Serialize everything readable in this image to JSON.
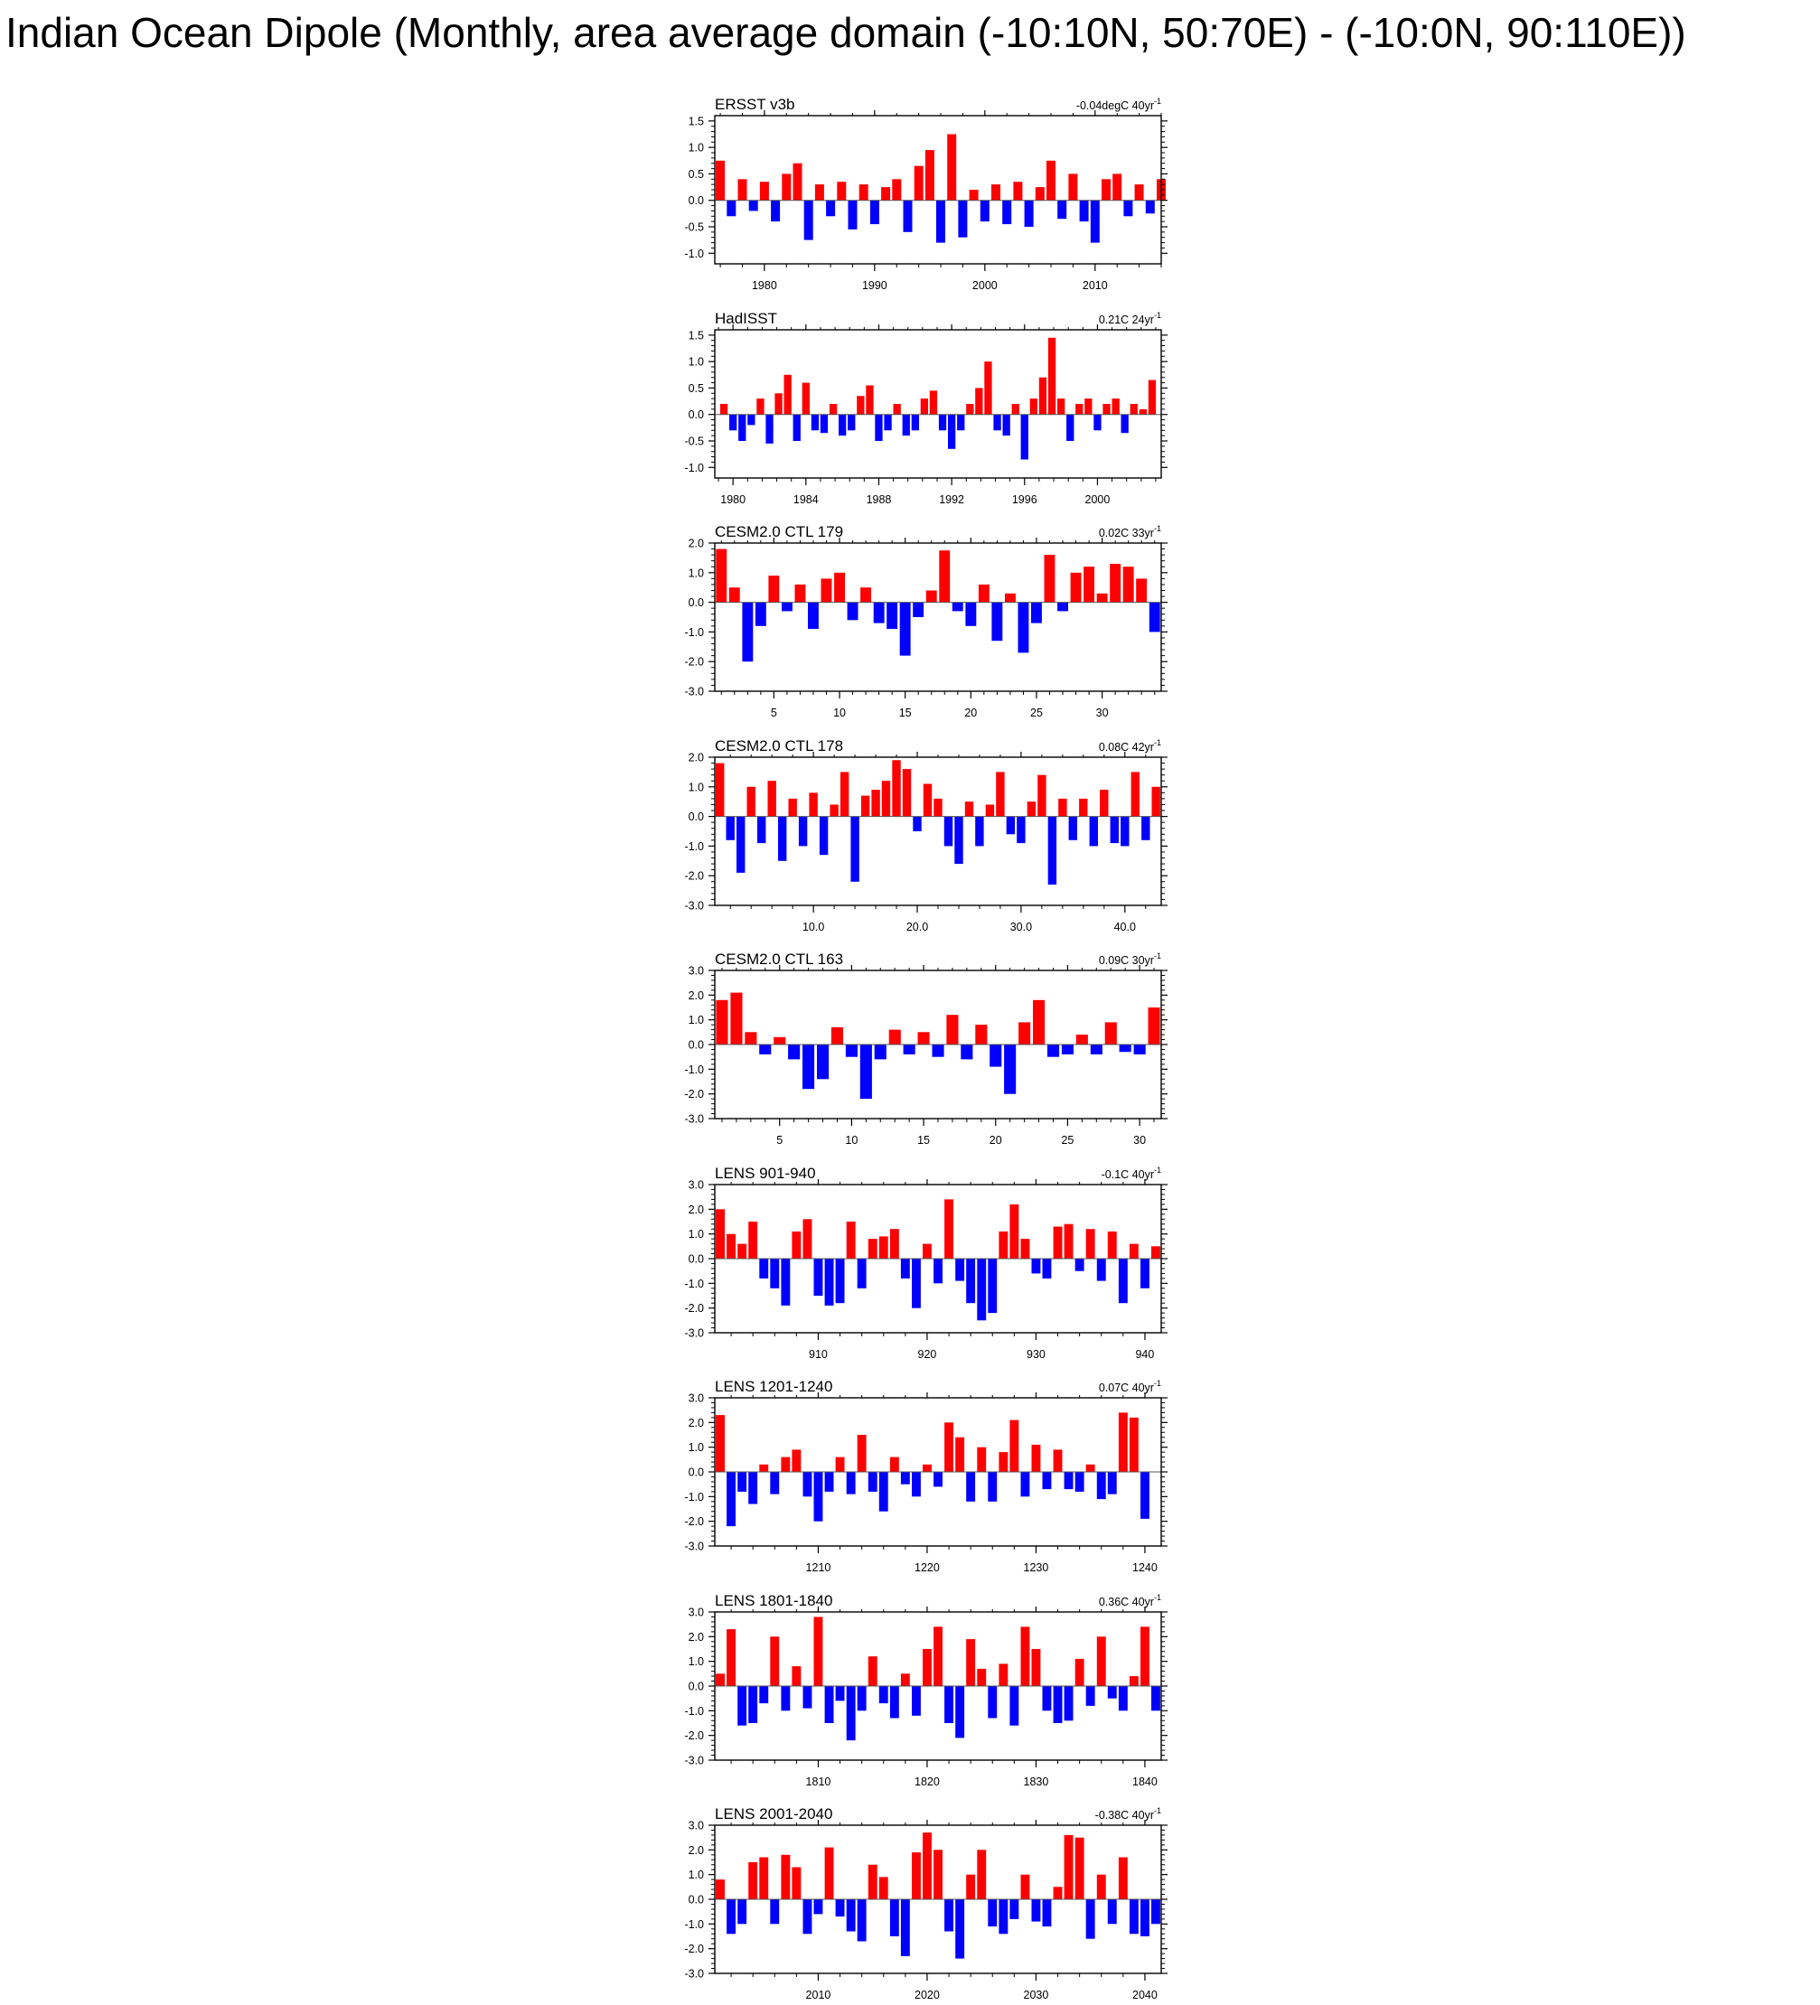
{
  "title": "Indian Ocean Dipole (Monthly, area average domain (-10:10N, 50:70E) - (-10:0N, 90:110E))",
  "colors": {
    "positive": "#ff0000",
    "negative": "#0000ff",
    "axis": "#000000"
  },
  "chart_data": [
    {
      "type": "area",
      "title": "ERSST v3b",
      "annotation": "-0.04degC 40yr",
      "annotation_sup": "-1",
      "xlim": [
        1975.5,
        2016.0
      ],
      "x_ticks": [
        1980,
        1990,
        2000,
        2010
      ],
      "x_tick_labels": [
        "1980",
        "1990",
        "2000",
        "2010"
      ],
      "ylim": [
        -1.2,
        1.6
      ],
      "y_ticks": [
        -1.0,
        -0.5,
        0.0,
        0.5,
        1.0,
        1.5
      ],
      "y_tick_labels": [
        "-1.0",
        "-0.5",
        "0.0",
        "0.5",
        "1.0",
        "1.5"
      ],
      "series": [
        {
          "x": [
            1976,
            1977,
            1978,
            1979,
            1980,
            1981,
            1982,
            1983,
            1984,
            1985,
            1986,
            1987,
            1988,
            1989,
            1990,
            1991,
            1992,
            1993,
            1994,
            1995,
            1996,
            1997,
            1998,
            1999,
            2000,
            2001,
            2002,
            2003,
            2004,
            2005,
            2006,
            2007,
            2008,
            2009,
            2010,
            2011,
            2012,
            2013,
            2014,
            2015,
            2016
          ],
          "values": [
            0.75,
            -0.3,
            0.4,
            -0.2,
            0.35,
            -0.4,
            0.5,
            0.7,
            -0.75,
            0.3,
            -0.3,
            0.35,
            -0.55,
            0.3,
            -0.45,
            0.25,
            0.4,
            -0.6,
            0.65,
            0.95,
            -0.8,
            1.25,
            -0.7,
            0.2,
            -0.4,
            0.3,
            -0.45,
            0.35,
            -0.5,
            0.25,
            0.75,
            -0.35,
            0.5,
            -0.4,
            -0.8,
            0.4,
            0.5,
            -0.3,
            0.3,
            -0.25,
            0.4
          ]
        }
      ]
    },
    {
      "type": "area",
      "title": "HadISST",
      "annotation": "0.21C 24yr",
      "annotation_sup": "-1",
      "xlim": [
        1979.0,
        2003.5
      ],
      "x_ticks": [
        1980,
        1984,
        1988,
        1992,
        1996,
        2000
      ],
      "x_tick_labels": [
        "1980",
        "1984",
        "1988",
        "1992",
        "1996",
        "2000"
      ],
      "ylim": [
        -1.2,
        1.6
      ],
      "y_ticks": [
        -1.0,
        -0.5,
        0.0,
        0.5,
        1.0,
        1.5
      ],
      "y_tick_labels": [
        "-1.0",
        "-0.5",
        "0.0",
        "0.5",
        "1.0",
        "1.5"
      ],
      "series": [
        {
          "x": [
            1979.5,
            1980,
            1980.5,
            1981,
            1981.5,
            1982,
            1982.5,
            1983,
            1983.5,
            1984,
            1984.5,
            1985,
            1985.5,
            1986,
            1986.5,
            1987,
            1987.5,
            1988,
            1988.5,
            1989,
            1989.5,
            1990,
            1990.5,
            1991,
            1991.5,
            1992,
            1992.5,
            1993,
            1993.5,
            1994,
            1994.5,
            1995,
            1995.5,
            1996,
            1996.5,
            1997,
            1997.5,
            1998,
            1998.5,
            1999,
            1999.5,
            2000,
            2000.5,
            2001,
            2001.5,
            2002,
            2002.5,
            2003
          ],
          "values": [
            0.2,
            -0.3,
            -0.5,
            -0.2,
            0.3,
            -0.55,
            0.4,
            0.75,
            -0.5,
            0.6,
            -0.3,
            -0.35,
            0.2,
            -0.4,
            -0.3,
            0.35,
            0.55,
            -0.5,
            -0.3,
            0.2,
            -0.4,
            -0.3,
            0.3,
            0.45,
            -0.3,
            -0.65,
            -0.3,
            0.2,
            0.5,
            1.0,
            -0.3,
            -0.4,
            0.2,
            -0.85,
            0.3,
            0.7,
            1.45,
            0.3,
            -0.5,
            0.2,
            0.3,
            -0.3,
            0.2,
            0.3,
            -0.35,
            0.2,
            0.1,
            0.65
          ]
        }
      ]
    },
    {
      "type": "area",
      "title": "CESM2.0 CTL 179",
      "annotation": "0.02C 33yr",
      "annotation_sup": "-1",
      "xlim": [
        0.5,
        34.5
      ],
      "x_ticks": [
        5,
        10,
        15,
        20,
        25,
        30
      ],
      "x_tick_labels": [
        "5",
        "10",
        "15",
        "20",
        "25",
        "30"
      ],
      "ylim": [
        -3.0,
        2.0
      ],
      "y_ticks": [
        -3.0,
        -2.0,
        -1.0,
        0.0,
        1.0,
        2.0
      ],
      "y_tick_labels": [
        "-3.0",
        "-2.0",
        "-1.0",
        "0.0",
        "1.0",
        "2.0"
      ],
      "series": [
        {
          "x": [
            1,
            2,
            3,
            4,
            5,
            6,
            7,
            8,
            9,
            10,
            11,
            12,
            13,
            14,
            15,
            16,
            17,
            18,
            19,
            20,
            21,
            22,
            23,
            24,
            25,
            26,
            27,
            28,
            29,
            30,
            31,
            32,
            33,
            34
          ],
          "values": [
            1.8,
            0.5,
            -2.0,
            -0.8,
            0.9,
            -0.3,
            0.6,
            -0.9,
            0.8,
            1.0,
            -0.6,
            0.5,
            -0.7,
            -0.9,
            -1.8,
            -0.5,
            0.4,
            1.75,
            -0.3,
            -0.8,
            0.6,
            -1.3,
            0.3,
            -1.7,
            -0.7,
            1.6,
            -0.3,
            1.0,
            1.2,
            0.3,
            1.3,
            1.2,
            0.8,
            -1.0
          ]
        }
      ]
    },
    {
      "type": "area",
      "title": "CESM2.0 CTL 178",
      "annotation": "0.08C 42yr",
      "annotation_sup": "-1",
      "xlim": [
        0.5,
        43.5
      ],
      "x_ticks": [
        10,
        20,
        30,
        40
      ],
      "x_tick_labels": [
        "10.0",
        "20.0",
        "30.0",
        "40.0"
      ],
      "ylim": [
        -3.0,
        2.0
      ],
      "y_ticks": [
        -3.0,
        -2.0,
        -1.0,
        0.0,
        1.0,
        2.0
      ],
      "y_tick_labels": [
        "-3.0",
        "-2.0",
        "-1.0",
        "0.0",
        "1.0",
        "2.0"
      ],
      "series": [
        {
          "x": [
            1,
            2,
            3,
            4,
            5,
            6,
            7,
            8,
            9,
            10,
            11,
            12,
            13,
            14,
            15,
            16,
            17,
            18,
            19,
            20,
            21,
            22,
            23,
            24,
            25,
            26,
            27,
            28,
            29,
            30,
            31,
            32,
            33,
            34,
            35,
            36,
            37,
            38,
            39,
            40,
            41,
            42,
            43
          ],
          "values": [
            1.8,
            -0.8,
            -1.9,
            1.0,
            -0.9,
            1.2,
            -1.5,
            0.6,
            -1.0,
            0.8,
            -1.3,
            0.4,
            1.5,
            -2.2,
            0.7,
            0.9,
            1.2,
            1.9,
            1.6,
            -0.5,
            1.1,
            0.6,
            -1.0,
            -1.6,
            0.5,
            -1.0,
            0.4,
            1.5,
            -0.6,
            -0.9,
            0.5,
            1.4,
            -2.3,
            0.6,
            -0.8,
            0.6,
            -1.0,
            0.9,
            -0.9,
            -1.0,
            1.5,
            -0.8,
            1.0
          ]
        }
      ]
    },
    {
      "type": "area",
      "title": "CESM2.0 CTL 163",
      "annotation": "0.09C 30yr",
      "annotation_sup": "-1",
      "xlim": [
        0.5,
        31.5
      ],
      "x_ticks": [
        5,
        10,
        15,
        20,
        25,
        30
      ],
      "x_tick_labels": [
        "5",
        "10",
        "15",
        "20",
        "25",
        "30"
      ],
      "ylim": [
        -3.0,
        3.0
      ],
      "y_ticks": [
        -3.0,
        -2.0,
        -1.0,
        0.0,
        1.0,
        2.0,
        3.0
      ],
      "y_tick_labels": [
        "-3.0",
        "-2.0",
        "-1.0",
        "0.0",
        "1.0",
        "2.0",
        "3.0"
      ],
      "series": [
        {
          "x": [
            1,
            2,
            3,
            4,
            5,
            6,
            7,
            8,
            9,
            10,
            11,
            12,
            13,
            14,
            15,
            16,
            17,
            18,
            19,
            20,
            21,
            22,
            23,
            24,
            25,
            26,
            27,
            28,
            29,
            30,
            31
          ],
          "values": [
            1.8,
            2.1,
            0.5,
            -0.4,
            0.3,
            -0.6,
            -1.8,
            -1.4,
            0.7,
            -0.5,
            -2.2,
            -0.6,
            0.6,
            -0.4,
            0.5,
            -0.5,
            1.2,
            -0.6,
            0.8,
            -0.9,
            -2.0,
            0.9,
            1.8,
            -0.5,
            -0.4,
            0.4,
            -0.4,
            0.9,
            -0.3,
            -0.4,
            1.5
          ]
        }
      ]
    },
    {
      "type": "area",
      "title": "LENS 901-940",
      "annotation": "-0.1C 40yr",
      "annotation_sup": "-1",
      "xlim": [
        900.5,
        941.5
      ],
      "x_ticks": [
        910,
        920,
        930,
        940
      ],
      "x_tick_labels": [
        "910",
        "920",
        "930",
        "940"
      ],
      "ylim": [
        -3.0,
        3.0
      ],
      "y_ticks": [
        -3.0,
        -2.0,
        -1.0,
        0.0,
        1.0,
        2.0,
        3.0
      ],
      "y_tick_labels": [
        "-3.0",
        "-2.0",
        "-1.0",
        "0.0",
        "1.0",
        "2.0",
        "3.0"
      ],
      "series": [
        {
          "x": [
            901,
            902,
            903,
            904,
            905,
            906,
            907,
            908,
            909,
            910,
            911,
            912,
            913,
            914,
            915,
            916,
            917,
            918,
            919,
            920,
            921,
            922,
            923,
            924,
            925,
            926,
            927,
            928,
            929,
            930,
            931,
            932,
            933,
            934,
            935,
            936,
            937,
            938,
            939,
            940,
            941
          ],
          "values": [
            2.0,
            1.0,
            0.6,
            1.5,
            -0.8,
            -1.2,
            -1.9,
            1.1,
            1.6,
            -1.5,
            -1.9,
            -1.8,
            1.5,
            -1.2,
            0.8,
            0.9,
            1.2,
            -0.8,
            -2.0,
            0.6,
            -1.0,
            2.4,
            -0.9,
            -1.8,
            -2.5,
            -2.2,
            1.1,
            2.2,
            0.8,
            -0.6,
            -0.8,
            1.3,
            1.4,
            -0.5,
            1.2,
            -0.9,
            1.1,
            -1.8,
            0.6,
            -1.2,
            0.5
          ]
        }
      ]
    },
    {
      "type": "area",
      "title": "LENS 1201-1240",
      "annotation": "0.07C 40yr",
      "annotation_sup": "-1",
      "xlim": [
        1200.5,
        1241.5
      ],
      "x_ticks": [
        1210,
        1220,
        1230,
        1240
      ],
      "x_tick_labels": [
        "1210",
        "1220",
        "1230",
        "1240"
      ],
      "ylim": [
        -3.0,
        3.0
      ],
      "y_ticks": [
        -3.0,
        -2.0,
        -1.0,
        0.0,
        1.0,
        2.0,
        3.0
      ],
      "y_tick_labels": [
        "-3.0",
        "-2.0",
        "-1.0",
        "0.0",
        "1.0",
        "2.0",
        "3.0"
      ],
      "series": [
        {
          "x": [
            1201,
            1202,
            1203,
            1204,
            1205,
            1206,
            1207,
            1208,
            1209,
            1210,
            1211,
            1212,
            1213,
            1214,
            1215,
            1216,
            1217,
            1218,
            1219,
            1220,
            1221,
            1222,
            1223,
            1224,
            1225,
            1226,
            1227,
            1228,
            1229,
            1230,
            1231,
            1232,
            1233,
            1234,
            1235,
            1236,
            1237,
            1238,
            1239,
            1240
          ],
          "values": [
            2.3,
            -2.2,
            -0.8,
            -1.3,
            0.3,
            -0.9,
            0.6,
            0.9,
            -1.0,
            -2.0,
            -0.8,
            0.6,
            -0.9,
            1.5,
            -0.8,
            -1.6,
            0.6,
            -0.5,
            -1.0,
            0.3,
            -0.6,
            2.0,
            1.4,
            -1.2,
            1.0,
            -1.2,
            0.8,
            2.1,
            -1.0,
            1.1,
            -0.7,
            0.9,
            -0.7,
            -0.8,
            0.3,
            -1.1,
            -0.9,
            2.4,
            2.2,
            -1.9
          ]
        }
      ]
    },
    {
      "type": "area",
      "title": "LENS 1801-1840",
      "annotation": "0.36C 40yr",
      "annotation_sup": "-1",
      "xlim": [
        1800.5,
        1841.5
      ],
      "x_ticks": [
        1810,
        1820,
        1830,
        1840
      ],
      "x_tick_labels": [
        "1810",
        "1820",
        "1830",
        "1840"
      ],
      "ylim": [
        -3.0,
        3.0
      ],
      "y_ticks": [
        -3.0,
        -2.0,
        -1.0,
        0.0,
        1.0,
        2.0,
        3.0
      ],
      "y_tick_labels": [
        "-3.0",
        "-2.0",
        "-1.0",
        "0.0",
        "1.0",
        "2.0",
        "3.0"
      ],
      "series": [
        {
          "x": [
            1801,
            1802,
            1803,
            1804,
            1805,
            1806,
            1807,
            1808,
            1809,
            1810,
            1811,
            1812,
            1813,
            1814,
            1815,
            1816,
            1817,
            1818,
            1819,
            1820,
            1821,
            1822,
            1823,
            1824,
            1825,
            1826,
            1827,
            1828,
            1829,
            1830,
            1831,
            1832,
            1833,
            1834,
            1835,
            1836,
            1837,
            1838,
            1839,
            1840,
            1841
          ],
          "values": [
            0.5,
            2.3,
            -1.6,
            -1.5,
            -0.7,
            2.0,
            -1.0,
            0.8,
            -0.9,
            2.8,
            -1.5,
            -0.6,
            -2.2,
            -1.0,
            1.2,
            -0.7,
            -1.3,
            0.5,
            -1.2,
            1.5,
            2.4,
            -1.5,
            -2.1,
            1.9,
            0.7,
            -1.3,
            0.9,
            -1.6,
            2.4,
            1.5,
            -1.0,
            -1.5,
            -1.4,
            1.1,
            -0.8,
            2.0,
            -0.5,
            -1.0,
            0.4,
            2.4,
            -1.0
          ]
        }
      ]
    },
    {
      "type": "area",
      "title": "LENS 2001-2040",
      "annotation": "-0.38C 40yr",
      "annotation_sup": "-1",
      "xlim": [
        2000.5,
        2041.5
      ],
      "x_ticks": [
        2010,
        2020,
        2030,
        2040
      ],
      "x_tick_labels": [
        "2010",
        "2020",
        "2030",
        "2040"
      ],
      "ylim": [
        -3.0,
        3.0
      ],
      "y_ticks": [
        -3.0,
        -2.0,
        -1.0,
        0.0,
        1.0,
        2.0,
        3.0
      ],
      "y_tick_labels": [
        "-3.0",
        "-2.0",
        "-1.0",
        "0.0",
        "1.0",
        "2.0",
        "3.0"
      ],
      "series": [
        {
          "x": [
            2001,
            2002,
            2003,
            2004,
            2005,
            2006,
            2007,
            2008,
            2009,
            2010,
            2011,
            2012,
            2013,
            2014,
            2015,
            2016,
            2017,
            2018,
            2019,
            2020,
            2021,
            2022,
            2023,
            2024,
            2025,
            2026,
            2027,
            2028,
            2029,
            2030,
            2031,
            2032,
            2033,
            2034,
            2035,
            2036,
            2037,
            2038,
            2039,
            2040,
            2041
          ],
          "values": [
            0.8,
            -1.4,
            -1.0,
            1.5,
            1.7,
            -1.0,
            1.8,
            1.3,
            -1.4,
            -0.6,
            2.1,
            -0.7,
            -1.3,
            -1.7,
            1.4,
            0.9,
            -1.5,
            -2.3,
            1.9,
            2.7,
            2.0,
            -1.3,
            -2.4,
            1.0,
            2.0,
            -1.1,
            -1.4,
            -0.8,
            1.0,
            -0.9,
            -1.1,
            0.5,
            2.6,
            2.5,
            -1.6,
            1.0,
            -1.0,
            1.7,
            -1.4,
            -1.5,
            -1.0
          ]
        }
      ]
    }
  ]
}
